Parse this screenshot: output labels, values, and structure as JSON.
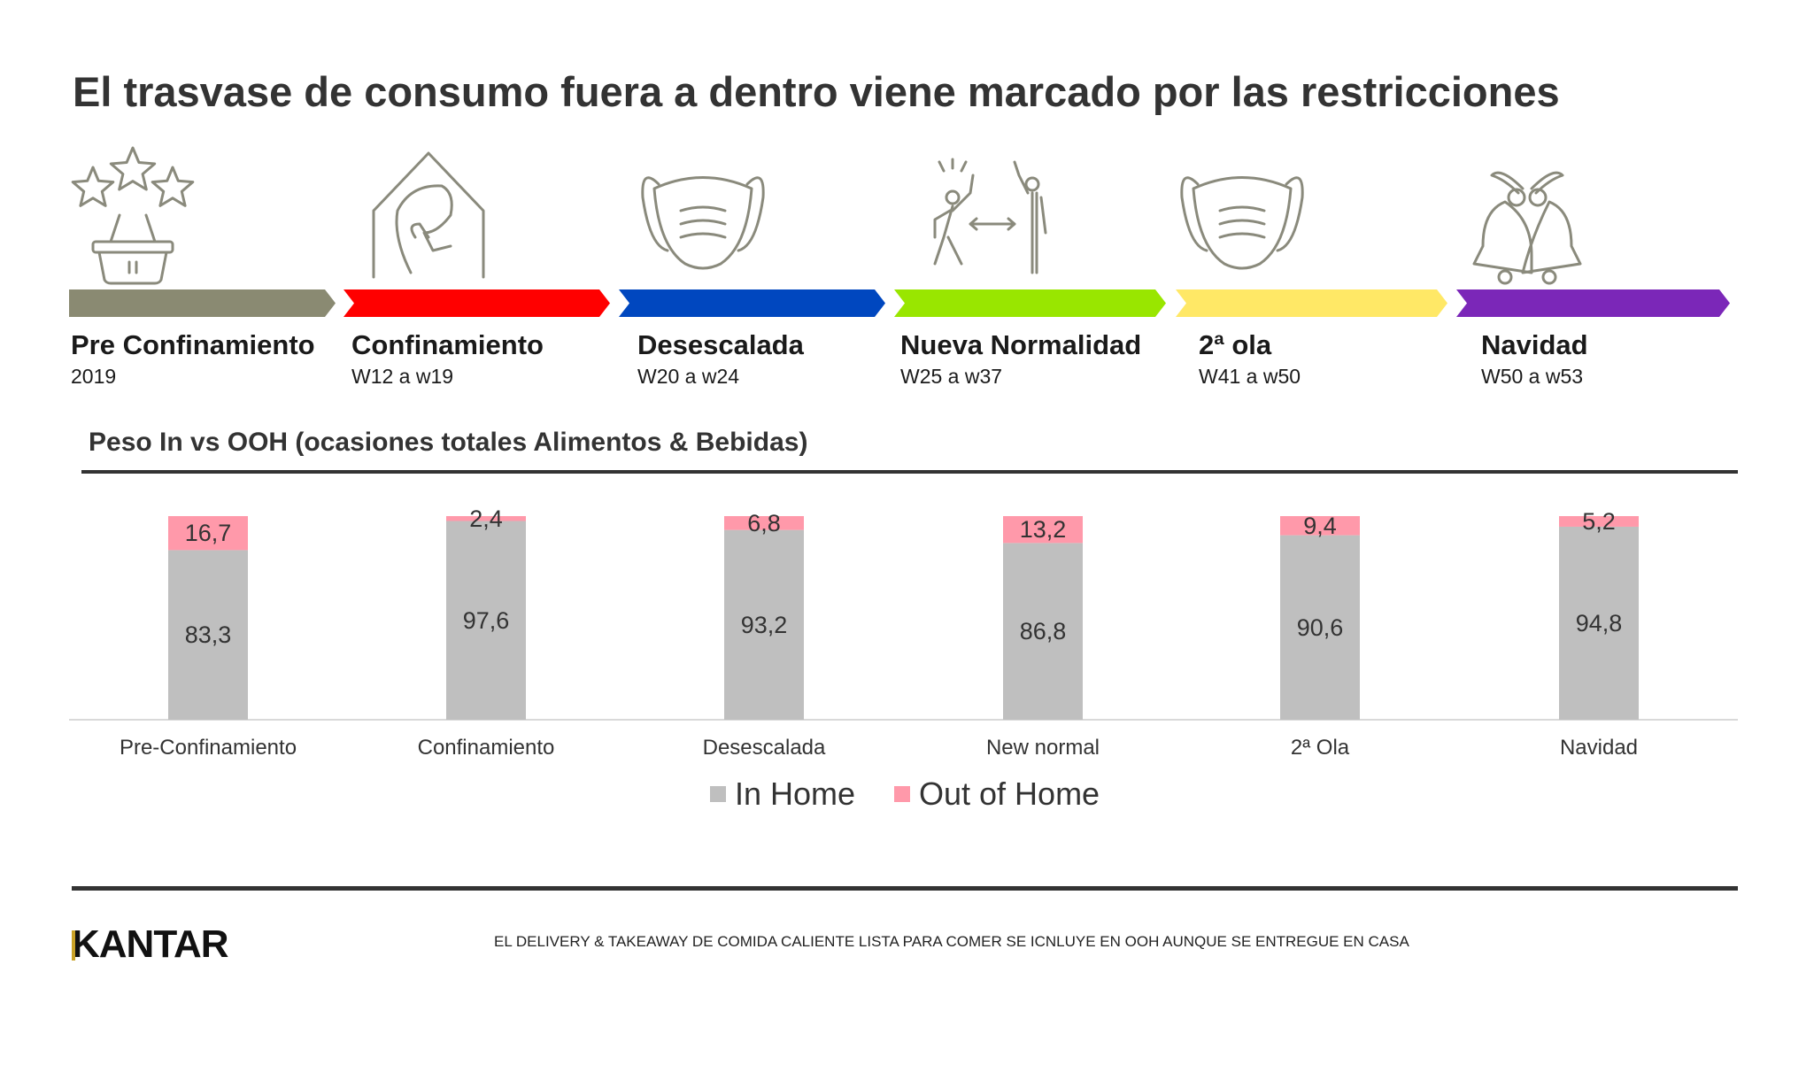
{
  "title": "El trasvase de consumo fuera a dentro viene marcado por las restricciones",
  "phases": [
    {
      "name": "Pre Confinamiento",
      "period": "2019",
      "color": "#8a8a72",
      "icon": "stars-basket-icon"
    },
    {
      "name": "Confinamiento",
      "period": "W12 a w19",
      "color": "#ff0000",
      "icon": "home-person-icon"
    },
    {
      "name": "Desescalada",
      "period": "W20 a w24",
      "color": "#0047bf",
      "icon": "face-mask-icon"
    },
    {
      "name": "Nueva Normalidad",
      "period": "W25 a w37",
      "color": "#99e600",
      "icon": "social-distance-icon"
    },
    {
      "name": "2ª ola",
      "period": "W41 a w50",
      "color": "#ffe866",
      "icon": "face-mask-icon"
    },
    {
      "name": "Navidad",
      "period": "W50 a w53",
      "color": "#7b27b8",
      "icon": "christmas-bells-icon"
    }
  ],
  "chart_data": {
    "type": "bar",
    "stacked": true,
    "title": "Peso In vs OOH (ocasiones totales Alimentos & Bebidas)",
    "categories": [
      "Pre-Confinamiento",
      "Confinamiento",
      "Desescalada",
      "New normal",
      "2ª Ola",
      "Navidad"
    ],
    "series": [
      {
        "name": "In Home",
        "values": [
          "83,3",
          "97,6",
          "93,2",
          "86,8",
          "90,6",
          "94,8"
        ],
        "color": "#bfbfbf"
      },
      {
        "name": "Out of Home",
        "values": [
          "16,7",
          "2,4",
          "6,8",
          "13,2",
          "9,4",
          "5,2"
        ],
        "color": "#ff99aa"
      }
    ],
    "ylim": [
      0,
      100
    ],
    "legend": "bottom",
    "grid": false
  },
  "footnote": "EL DELIVERY & TAKEAWAY DE COMIDA CALIENTE LISTA PARA COMER SE ICNLUYE EN OOH AUNQUE SE ENTREGUE EN CASA",
  "logo": "KANTAR"
}
